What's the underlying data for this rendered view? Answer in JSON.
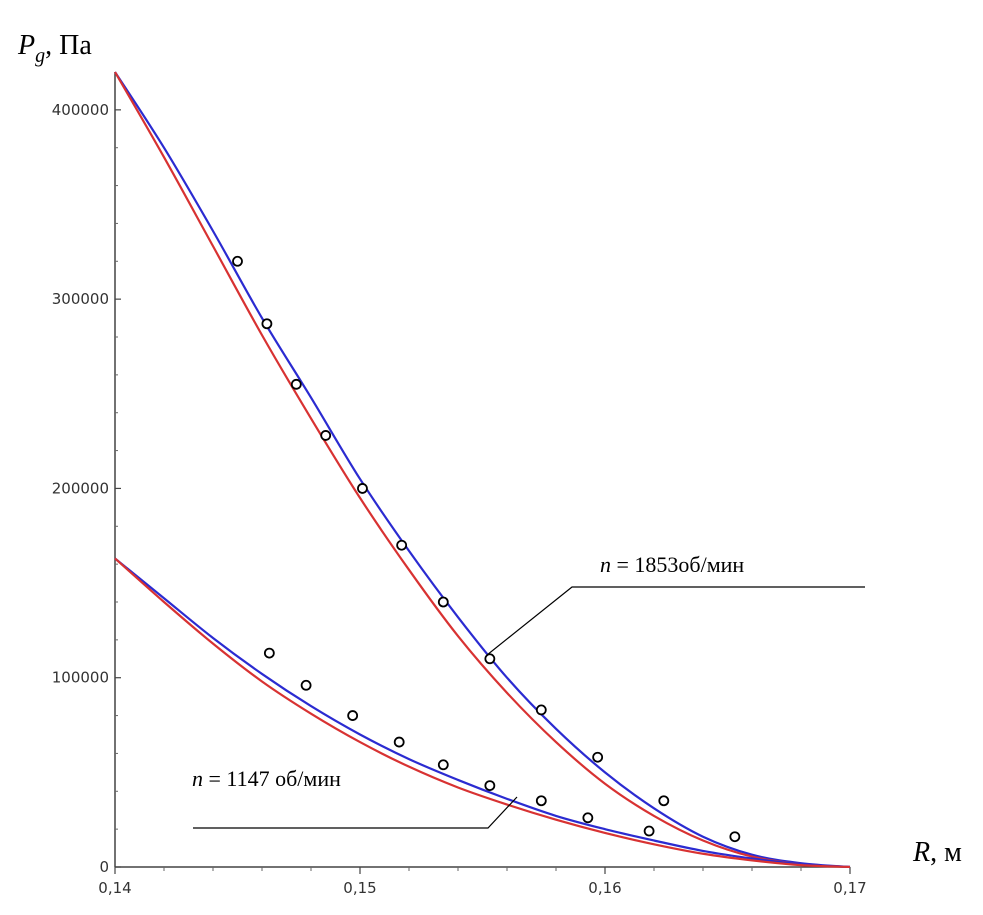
{
  "chart_data": {
    "type": "line",
    "ylabel": {
      "symbol": "P",
      "sub": "g",
      "unit": ", Па"
    },
    "xlabel": {
      "symbol": "R",
      "unit": ", м"
    },
    "xlim": [
      0.14,
      0.17
    ],
    "ylim": [
      0,
      420000
    ],
    "x_ticks": [
      {
        "value": 0.14,
        "label": "0,14"
      },
      {
        "value": 0.15,
        "label": "0,15"
      },
      {
        "value": 0.16,
        "label": "0,16"
      },
      {
        "value": 0.17,
        "label": "0,17"
      }
    ],
    "y_ticks": [
      {
        "value": 0,
        "label": "0"
      },
      {
        "value": 100000,
        "label": "100000"
      },
      {
        "value": 200000,
        "label": "200000"
      },
      {
        "value": 300000,
        "label": "300000"
      },
      {
        "value": 400000,
        "label": "400000"
      }
    ],
    "annotations": [
      {
        "id": "n1853",
        "prefix": "n",
        "text": " = 1853об/мин"
      },
      {
        "id": "n1147",
        "prefix": "n",
        "text": " = 1147 об/мин"
      }
    ],
    "series": [
      {
        "group": "n1853",
        "kind": "line",
        "color": "#2b2bd1",
        "points": [
          [
            0.14,
            420000
          ],
          [
            0.142,
            380000
          ],
          [
            0.144,
            336000
          ],
          [
            0.146,
            290000
          ],
          [
            0.148,
            248000
          ],
          [
            0.15,
            205000
          ],
          [
            0.152,
            167000
          ],
          [
            0.154,
            132000
          ],
          [
            0.156,
            100000
          ],
          [
            0.158,
            73000
          ],
          [
            0.16,
            50000
          ],
          [
            0.162,
            31000
          ],
          [
            0.164,
            16000
          ],
          [
            0.166,
            6500
          ],
          [
            0.168,
            2000
          ],
          [
            0.17,
            0
          ]
        ]
      },
      {
        "group": "n1853",
        "kind": "line",
        "color": "#d83232",
        "points": [
          [
            0.14,
            420000
          ],
          [
            0.142,
            375000
          ],
          [
            0.144,
            328000
          ],
          [
            0.146,
            281000
          ],
          [
            0.148,
            237000
          ],
          [
            0.15,
            195000
          ],
          [
            0.152,
            157000
          ],
          [
            0.154,
            122000
          ],
          [
            0.156,
            92000
          ],
          [
            0.158,
            66000
          ],
          [
            0.16,
            44000
          ],
          [
            0.162,
            27000
          ],
          [
            0.164,
            14000
          ],
          [
            0.166,
            5500
          ],
          [
            0.168,
            1500
          ],
          [
            0.17,
            0
          ]
        ]
      },
      {
        "group": "n1147",
        "kind": "line",
        "color": "#2b2bd1",
        "points": [
          [
            0.14,
            163000
          ],
          [
            0.142,
            142000
          ],
          [
            0.144,
            121000
          ],
          [
            0.146,
            102000
          ],
          [
            0.148,
            85000
          ],
          [
            0.15,
            70000
          ],
          [
            0.152,
            57000
          ],
          [
            0.154,
            46000
          ],
          [
            0.156,
            36000
          ],
          [
            0.158,
            27000
          ],
          [
            0.16,
            20000
          ],
          [
            0.162,
            14000
          ],
          [
            0.164,
            8500
          ],
          [
            0.166,
            4500
          ],
          [
            0.168,
            1500
          ],
          [
            0.17,
            0
          ]
        ]
      },
      {
        "group": "n1147",
        "kind": "line",
        "color": "#d83232",
        "points": [
          [
            0.14,
            163000
          ],
          [
            0.142,
            140000
          ],
          [
            0.144,
            118000
          ],
          [
            0.146,
            98000
          ],
          [
            0.148,
            81000
          ],
          [
            0.15,
            66000
          ],
          [
            0.152,
            53000
          ],
          [
            0.154,
            42000
          ],
          [
            0.156,
            33000
          ],
          [
            0.158,
            25000
          ],
          [
            0.16,
            18000
          ],
          [
            0.162,
            12000
          ],
          [
            0.164,
            7000
          ],
          [
            0.166,
            3500
          ],
          [
            0.168,
            1000
          ],
          [
            0.17,
            0
          ]
        ]
      },
      {
        "group": "n1853",
        "kind": "markers",
        "points": [
          [
            0.145,
            320000
          ],
          [
            0.1462,
            287000
          ],
          [
            0.1474,
            255000
          ],
          [
            0.1486,
            228000
          ],
          [
            0.1501,
            200000
          ],
          [
            0.1517,
            170000
          ],
          [
            0.1534,
            140000
          ],
          [
            0.1553,
            110000
          ],
          [
            0.1574,
            83000
          ],
          [
            0.1597,
            58000
          ],
          [
            0.1624,
            35000
          ],
          [
            0.1653,
            16000
          ]
        ]
      },
      {
        "group": "n1147",
        "kind": "markers",
        "points": [
          [
            0.1463,
            113000
          ],
          [
            0.1478,
            96000
          ],
          [
            0.1497,
            80000
          ],
          [
            0.1516,
            66000
          ],
          [
            0.1534,
            54000
          ],
          [
            0.1553,
            43000
          ],
          [
            0.1574,
            35000
          ],
          [
            0.1593,
            26000
          ],
          [
            0.1618,
            19000
          ]
        ]
      }
    ]
  }
}
